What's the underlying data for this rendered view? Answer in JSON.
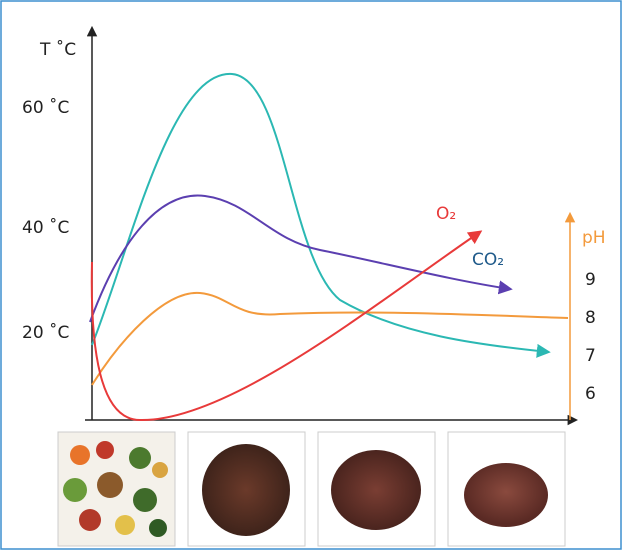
{
  "axes": {
    "temperature": {
      "label": "T ˚C",
      "ticks": [
        "60 ˚C",
        "40 ˚C",
        "20 ˚C"
      ]
    },
    "ph": {
      "label": "pH",
      "ticks": [
        "9",
        "8",
        "7",
        "6"
      ]
    }
  },
  "curves": {
    "oxygen": "O₂",
    "carbon_dioxide": "CO₂"
  }
}
